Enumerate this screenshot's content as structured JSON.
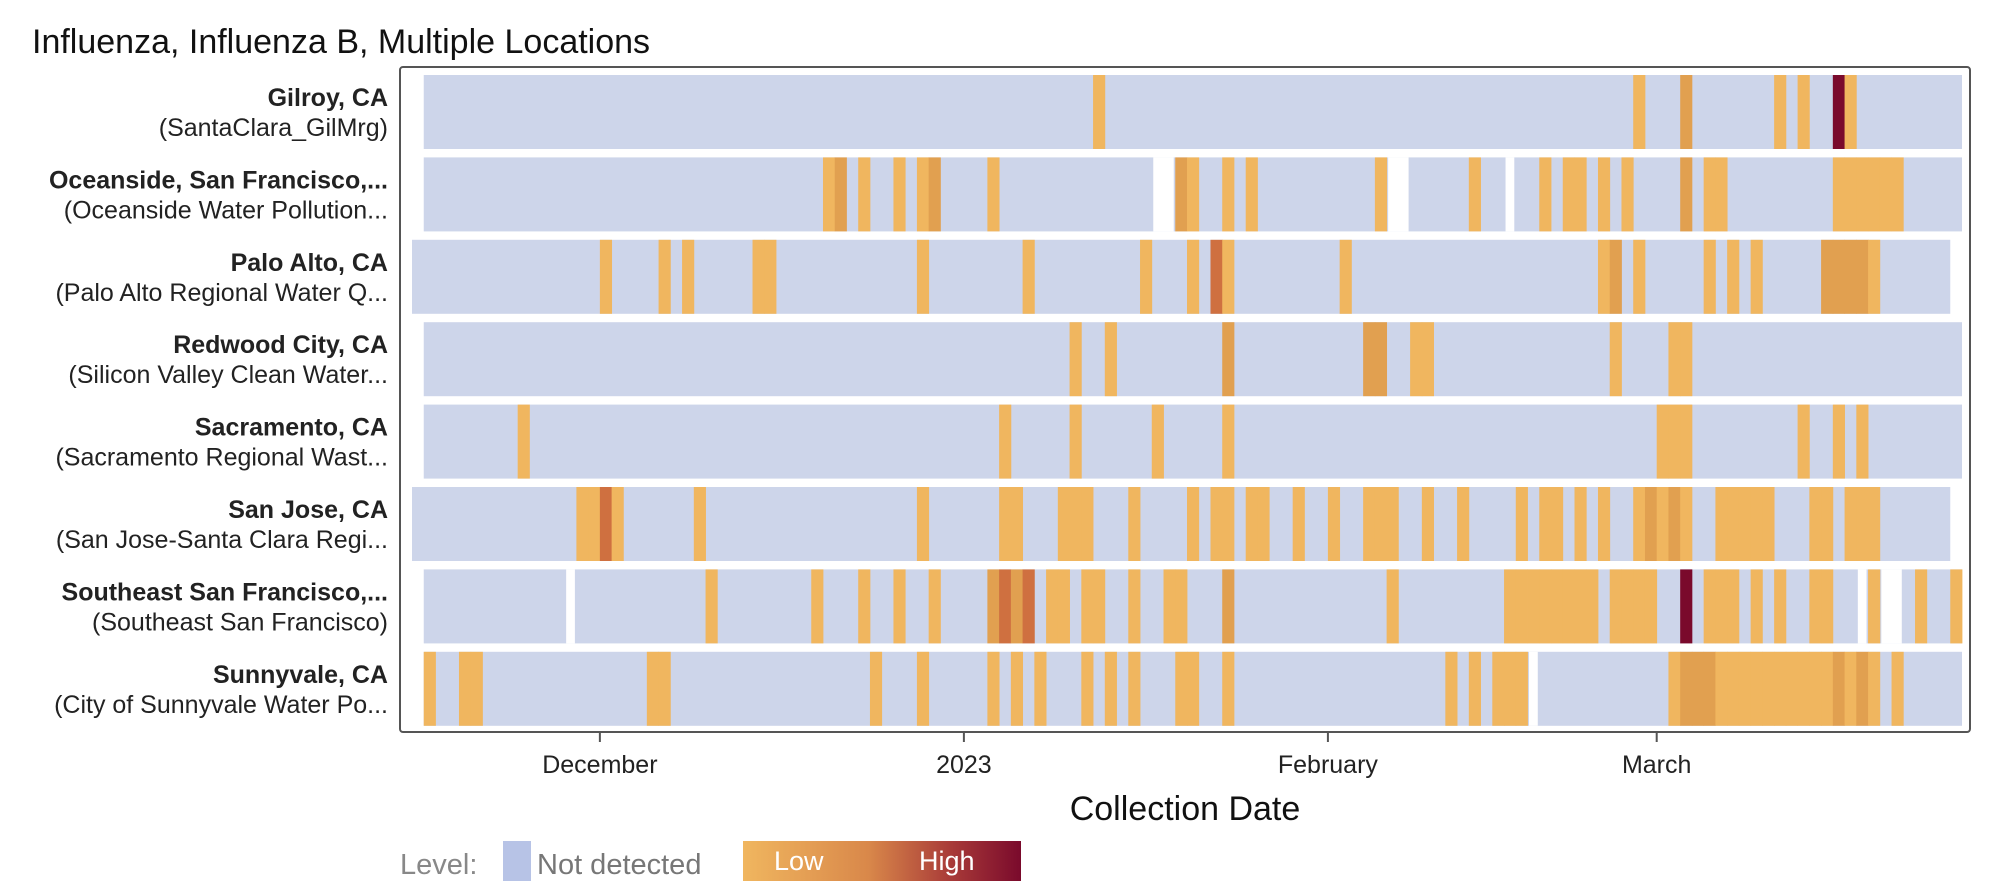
{
  "chart_data": {
    "type": "heatmap",
    "title": "Influenza, Influenza B, Multiple Locations",
    "xlabel": "Collection Date",
    "ylabel": "",
    "x_start": "2022-11-15",
    "x_end": "2023-03-27",
    "x_ticks": [
      {
        "label": "December",
        "date": "2022-12-01"
      },
      {
        "label": "2023",
        "date": "2023-01-01"
      },
      {
        "label": "February",
        "date": "2023-02-01"
      },
      {
        "label": "March",
        "date": "2023-03-01"
      }
    ],
    "level_legend": {
      "title": "Level:",
      "not_detected_label": "Not detected",
      "low_label": "Low",
      "high_label": "High"
    },
    "colors": {
      "not_detected": "#cdd5ea",
      "not_detected_legend": "#b7c3e6",
      "low": "#f0b65f",
      "mid": "#e1a050",
      "midhigh": "#cf7040",
      "high": "#7a0a2c",
      "frame": "#555555"
    },
    "rows": [
      {
        "location": "Gilroy, CA",
        "site": "(SantaClara_GilMrg)",
        "first_date": "2022-11-16",
        "last_date": "2023-03-26",
        "gaps": [],
        "detections": [
          {
            "date": "2023-01-12",
            "level": 1
          },
          {
            "date": "2023-02-27",
            "level": 1
          },
          {
            "date": "2023-03-03",
            "level": 2
          },
          {
            "date": "2023-03-11",
            "level": 1
          },
          {
            "date": "2023-03-13",
            "level": 1
          },
          {
            "date": "2023-03-16",
            "level": 10
          },
          {
            "date": "2023-03-17",
            "level": 1
          }
        ]
      },
      {
        "location": "Oceanside, San Francisco,...",
        "site": "(Oceanside Water Pollution...",
        "first_date": "2022-11-16",
        "last_date": "2023-03-26",
        "gaps": [
          [
            "2023-01-17",
            "2023-01-18"
          ],
          [
            "2023-02-06",
            "2023-02-07"
          ],
          [
            "2023-02-16",
            "2023-02-16"
          ]
        ],
        "detections": [
          {
            "date": "2022-12-20",
            "level": 1
          },
          {
            "date": "2022-12-21",
            "level": 2
          },
          {
            "date": "2022-12-23",
            "level": 1
          },
          {
            "date": "2022-12-26",
            "level": 1
          },
          {
            "date": "2022-12-28",
            "level": 1
          },
          {
            "date": "2022-12-29",
            "level": 2
          },
          {
            "date": "2023-01-03",
            "level": 1
          },
          {
            "date": "2023-01-19",
            "level": 2
          },
          {
            "date": "2023-01-20",
            "level": 1
          },
          {
            "date": "2023-01-23",
            "level": 1
          },
          {
            "date": "2023-01-25",
            "level": 1
          },
          {
            "date": "2023-02-05",
            "level": 1
          },
          {
            "date": "2023-02-13",
            "level": 1
          },
          {
            "date": "2023-02-19",
            "level": 1
          },
          {
            "date": "2023-02-21",
            "level": 1
          },
          {
            "date": "2023-02-22",
            "level": 1
          },
          {
            "date": "2023-02-24",
            "level": 1
          },
          {
            "date": "2023-02-26",
            "level": 1
          },
          {
            "date": "2023-03-03",
            "level": 2
          },
          {
            "date": "2023-03-05",
            "level": 1
          },
          {
            "date": "2023-03-06",
            "level": 1
          },
          {
            "date": "2023-03-16",
            "level": 1
          },
          {
            "date": "2023-03-17",
            "level": 1
          },
          {
            "date": "2023-03-18",
            "level": 1
          },
          {
            "date": "2023-03-19",
            "level": 1
          },
          {
            "date": "2023-03-20",
            "level": 1
          },
          {
            "date": "2023-03-21",
            "level": 1
          }
        ]
      },
      {
        "location": "Palo Alto, CA",
        "site": "(Palo Alto Regional Water Q...",
        "first_date": "2022-11-15",
        "last_date": "2023-03-25",
        "gaps": [],
        "detections": [
          {
            "date": "2022-12-01",
            "level": 1
          },
          {
            "date": "2022-12-06",
            "level": 1
          },
          {
            "date": "2022-12-08",
            "level": 1
          },
          {
            "date": "2022-12-14",
            "level": 1
          },
          {
            "date": "2022-12-15",
            "level": 1
          },
          {
            "date": "2022-12-28",
            "level": 1
          },
          {
            "date": "2023-01-06",
            "level": 1
          },
          {
            "date": "2023-01-16",
            "level": 1
          },
          {
            "date": "2023-01-20",
            "level": 1
          },
          {
            "date": "2023-01-22",
            "level": 3
          },
          {
            "date": "2023-01-23",
            "level": 1
          },
          {
            "date": "2023-02-02",
            "level": 1
          },
          {
            "date": "2023-02-24",
            "level": 1
          },
          {
            "date": "2023-02-25",
            "level": 2
          },
          {
            "date": "2023-02-27",
            "level": 1
          },
          {
            "date": "2023-03-05",
            "level": 1
          },
          {
            "date": "2023-03-07",
            "level": 1
          },
          {
            "date": "2023-03-09",
            "level": 1
          },
          {
            "date": "2023-03-15",
            "level": 2
          },
          {
            "date": "2023-03-16",
            "level": 2
          },
          {
            "date": "2023-03-17",
            "level": 2
          },
          {
            "date": "2023-03-18",
            "level": 2
          },
          {
            "date": "2023-03-19",
            "level": 1
          }
        ]
      },
      {
        "location": "Redwood City, CA",
        "site": "(Silicon Valley Clean Water...",
        "first_date": "2022-11-16",
        "last_date": "2023-03-26",
        "gaps": [],
        "detections": [
          {
            "date": "2023-01-10",
            "level": 1
          },
          {
            "date": "2023-01-13",
            "level": 1
          },
          {
            "date": "2023-01-23",
            "level": 2
          },
          {
            "date": "2023-02-04",
            "level": 2
          },
          {
            "date": "2023-02-05",
            "level": 2
          },
          {
            "date": "2023-02-08",
            "level": 1
          },
          {
            "date": "2023-02-09",
            "level": 1
          },
          {
            "date": "2023-02-25",
            "level": 1
          },
          {
            "date": "2023-03-02",
            "level": 1
          },
          {
            "date": "2023-03-03",
            "level": 1
          }
        ]
      },
      {
        "location": "Sacramento, CA",
        "site": "(Sacramento Regional Wast...",
        "first_date": "2022-11-16",
        "last_date": "2023-03-26",
        "gaps": [],
        "detections": [
          {
            "date": "2022-11-24",
            "level": 1
          },
          {
            "date": "2023-01-04",
            "level": 1
          },
          {
            "date": "2023-01-10",
            "level": 1
          },
          {
            "date": "2023-01-17",
            "level": 1
          },
          {
            "date": "2023-01-23",
            "level": 1
          },
          {
            "date": "2023-03-01",
            "level": 1
          },
          {
            "date": "2023-03-02",
            "level": 1
          },
          {
            "date": "2023-03-03",
            "level": 1
          },
          {
            "date": "2023-03-13",
            "level": 1
          },
          {
            "date": "2023-03-16",
            "level": 1
          },
          {
            "date": "2023-03-18",
            "level": 1
          }
        ]
      },
      {
        "location": "San Jose, CA",
        "site": "(San Jose-Santa Clara Regi...",
        "first_date": "2022-11-15",
        "last_date": "2023-03-25",
        "gaps": [],
        "detections": [
          {
            "date": "2022-11-29",
            "level": 1
          },
          {
            "date": "2022-11-30",
            "level": 1
          },
          {
            "date": "2022-12-01",
            "level": 3
          },
          {
            "date": "2022-12-02",
            "level": 1
          },
          {
            "date": "2022-12-09",
            "level": 1
          },
          {
            "date": "2022-12-28",
            "level": 1
          },
          {
            "date": "2023-01-04",
            "level": 1
          },
          {
            "date": "2023-01-05",
            "level": 1
          },
          {
            "date": "2023-01-09",
            "level": 1
          },
          {
            "date": "2023-01-10",
            "level": 1
          },
          {
            "date": "2023-01-11",
            "level": 1
          },
          {
            "date": "2023-01-15",
            "level": 1
          },
          {
            "date": "2023-01-20",
            "level": 1
          },
          {
            "date": "2023-01-22",
            "level": 1
          },
          {
            "date": "2023-01-23",
            "level": 1
          },
          {
            "date": "2023-01-25",
            "level": 1
          },
          {
            "date": "2023-01-26",
            "level": 1
          },
          {
            "date": "2023-01-29",
            "level": 1
          },
          {
            "date": "2023-02-01",
            "level": 1
          },
          {
            "date": "2023-02-04",
            "level": 1
          },
          {
            "date": "2023-02-05",
            "level": 1
          },
          {
            "date": "2023-02-06",
            "level": 1
          },
          {
            "date": "2023-02-09",
            "level": 1
          },
          {
            "date": "2023-02-12",
            "level": 1
          },
          {
            "date": "2023-02-17",
            "level": 1
          },
          {
            "date": "2023-02-19",
            "level": 1
          },
          {
            "date": "2023-02-20",
            "level": 1
          },
          {
            "date": "2023-02-22",
            "level": 1
          },
          {
            "date": "2023-02-24",
            "level": 1
          },
          {
            "date": "2023-02-27",
            "level": 1
          },
          {
            "date": "2023-02-28",
            "level": 2
          },
          {
            "date": "2023-03-01",
            "level": 1
          },
          {
            "date": "2023-03-02",
            "level": 2
          },
          {
            "date": "2023-03-03",
            "level": 1
          },
          {
            "date": "2023-03-06",
            "level": 1
          },
          {
            "date": "2023-03-07",
            "level": 1
          },
          {
            "date": "2023-03-08",
            "level": 1
          },
          {
            "date": "2023-03-09",
            "level": 1
          },
          {
            "date": "2023-03-10",
            "level": 1
          },
          {
            "date": "2023-03-14",
            "level": 1
          },
          {
            "date": "2023-03-15",
            "level": 1
          },
          {
            "date": "2023-03-17",
            "level": 1
          },
          {
            "date": "2023-03-18",
            "level": 1
          },
          {
            "date": "2023-03-19",
            "level": 1
          }
        ]
      },
      {
        "location": "Southeast San Francisco,...",
        "site": "(Southeast San Francisco)",
        "first_date": "2022-11-16",
        "last_date": "2023-03-26",
        "gaps": [
          [
            "2022-11-28",
            "2022-11-28"
          ],
          [
            "2023-03-18",
            "2023-03-18"
          ],
          [
            "2023-03-20",
            "2023-03-21"
          ]
        ],
        "detections": [
          {
            "date": "2022-12-10",
            "level": 1
          },
          {
            "date": "2022-12-19",
            "level": 1
          },
          {
            "date": "2022-12-23",
            "level": 1
          },
          {
            "date": "2022-12-26",
            "level": 1
          },
          {
            "date": "2022-12-29",
            "level": 1
          },
          {
            "date": "2023-01-03",
            "level": 2
          },
          {
            "date": "2023-01-04",
            "level": 3
          },
          {
            "date": "2023-01-05",
            "level": 2
          },
          {
            "date": "2023-01-06",
            "level": 3
          },
          {
            "date": "2023-01-08",
            "level": 1
          },
          {
            "date": "2023-01-09",
            "level": 1
          },
          {
            "date": "2023-01-11",
            "level": 1
          },
          {
            "date": "2023-01-12",
            "level": 1
          },
          {
            "date": "2023-01-15",
            "level": 1
          },
          {
            "date": "2023-01-18",
            "level": 1
          },
          {
            "date": "2023-01-19",
            "level": 1
          },
          {
            "date": "2023-01-23",
            "level": 2
          },
          {
            "date": "2023-02-06",
            "level": 1
          },
          {
            "date": "2023-02-16",
            "level": 1
          },
          {
            "date": "2023-02-17",
            "level": 1
          },
          {
            "date": "2023-02-18",
            "level": 1
          },
          {
            "date": "2023-02-19",
            "level": 1
          },
          {
            "date": "2023-02-20",
            "level": 1
          },
          {
            "date": "2023-02-21",
            "level": 1
          },
          {
            "date": "2023-02-22",
            "level": 1
          },
          {
            "date": "2023-02-23",
            "level": 1
          },
          {
            "date": "2023-02-25",
            "level": 1
          },
          {
            "date": "2023-02-26",
            "level": 1
          },
          {
            "date": "2023-02-27",
            "level": 1
          },
          {
            "date": "2023-02-28",
            "level": 1
          },
          {
            "date": "2023-03-03",
            "level": 10
          },
          {
            "date": "2023-03-05",
            "level": 1
          },
          {
            "date": "2023-03-06",
            "level": 1
          },
          {
            "date": "2023-03-07",
            "level": 1
          },
          {
            "date": "2023-03-09",
            "level": 1
          },
          {
            "date": "2023-03-11",
            "level": 1
          },
          {
            "date": "2023-03-14",
            "level": 1
          },
          {
            "date": "2023-03-15",
            "level": 1
          },
          {
            "date": "2023-03-19",
            "level": 1
          },
          {
            "date": "2023-03-23",
            "level": 1
          },
          {
            "date": "2023-03-26",
            "level": 1
          }
        ]
      },
      {
        "location": "Sunnyvale, CA",
        "site": "(City of Sunnyvale Water Po...",
        "first_date": "2022-11-16",
        "last_date": "2023-03-26",
        "gaps": [
          [
            "2023-02-18",
            "2023-02-18"
          ]
        ],
        "detections": [
          {
            "date": "2022-11-16",
            "level": 1
          },
          {
            "date": "2022-11-19",
            "level": 1
          },
          {
            "date": "2022-11-20",
            "level": 1
          },
          {
            "date": "2022-12-05",
            "level": 1
          },
          {
            "date": "2022-12-06",
            "level": 1
          },
          {
            "date": "2022-12-24",
            "level": 1
          },
          {
            "date": "2022-12-28",
            "level": 1
          },
          {
            "date": "2023-01-03",
            "level": 1
          },
          {
            "date": "2023-01-05",
            "level": 1
          },
          {
            "date": "2023-01-07",
            "level": 1
          },
          {
            "date": "2023-01-11",
            "level": 1
          },
          {
            "date": "2023-01-13",
            "level": 1
          },
          {
            "date": "2023-01-15",
            "level": 1
          },
          {
            "date": "2023-01-19",
            "level": 1
          },
          {
            "date": "2023-01-20",
            "level": 1
          },
          {
            "date": "2023-01-23",
            "level": 1
          },
          {
            "date": "2023-02-11",
            "level": 1
          },
          {
            "date": "2023-02-13",
            "level": 1
          },
          {
            "date": "2023-02-15",
            "level": 1
          },
          {
            "date": "2023-02-16",
            "level": 1
          },
          {
            "date": "2023-02-17",
            "level": 1
          },
          {
            "date": "2023-03-02",
            "level": 1
          },
          {
            "date": "2023-03-03",
            "level": 2
          },
          {
            "date": "2023-03-04",
            "level": 2
          },
          {
            "date": "2023-03-05",
            "level": 2
          },
          {
            "date": "2023-03-06",
            "level": 1
          },
          {
            "date": "2023-03-07",
            "level": 1
          },
          {
            "date": "2023-03-08",
            "level": 1
          },
          {
            "date": "2023-03-09",
            "level": 1
          },
          {
            "date": "2023-03-10",
            "level": 1
          },
          {
            "date": "2023-03-11",
            "level": 1
          },
          {
            "date": "2023-03-12",
            "level": 1
          },
          {
            "date": "2023-03-13",
            "level": 1
          },
          {
            "date": "2023-03-14",
            "level": 1
          },
          {
            "date": "2023-03-15",
            "level": 1
          },
          {
            "date": "2023-03-16",
            "level": 2
          },
          {
            "date": "2023-03-17",
            "level": 1
          },
          {
            "date": "2023-03-18",
            "level": 2
          },
          {
            "date": "2023-03-19",
            "level": 1
          },
          {
            "date": "2023-03-21",
            "level": 1
          }
        ]
      }
    ]
  }
}
